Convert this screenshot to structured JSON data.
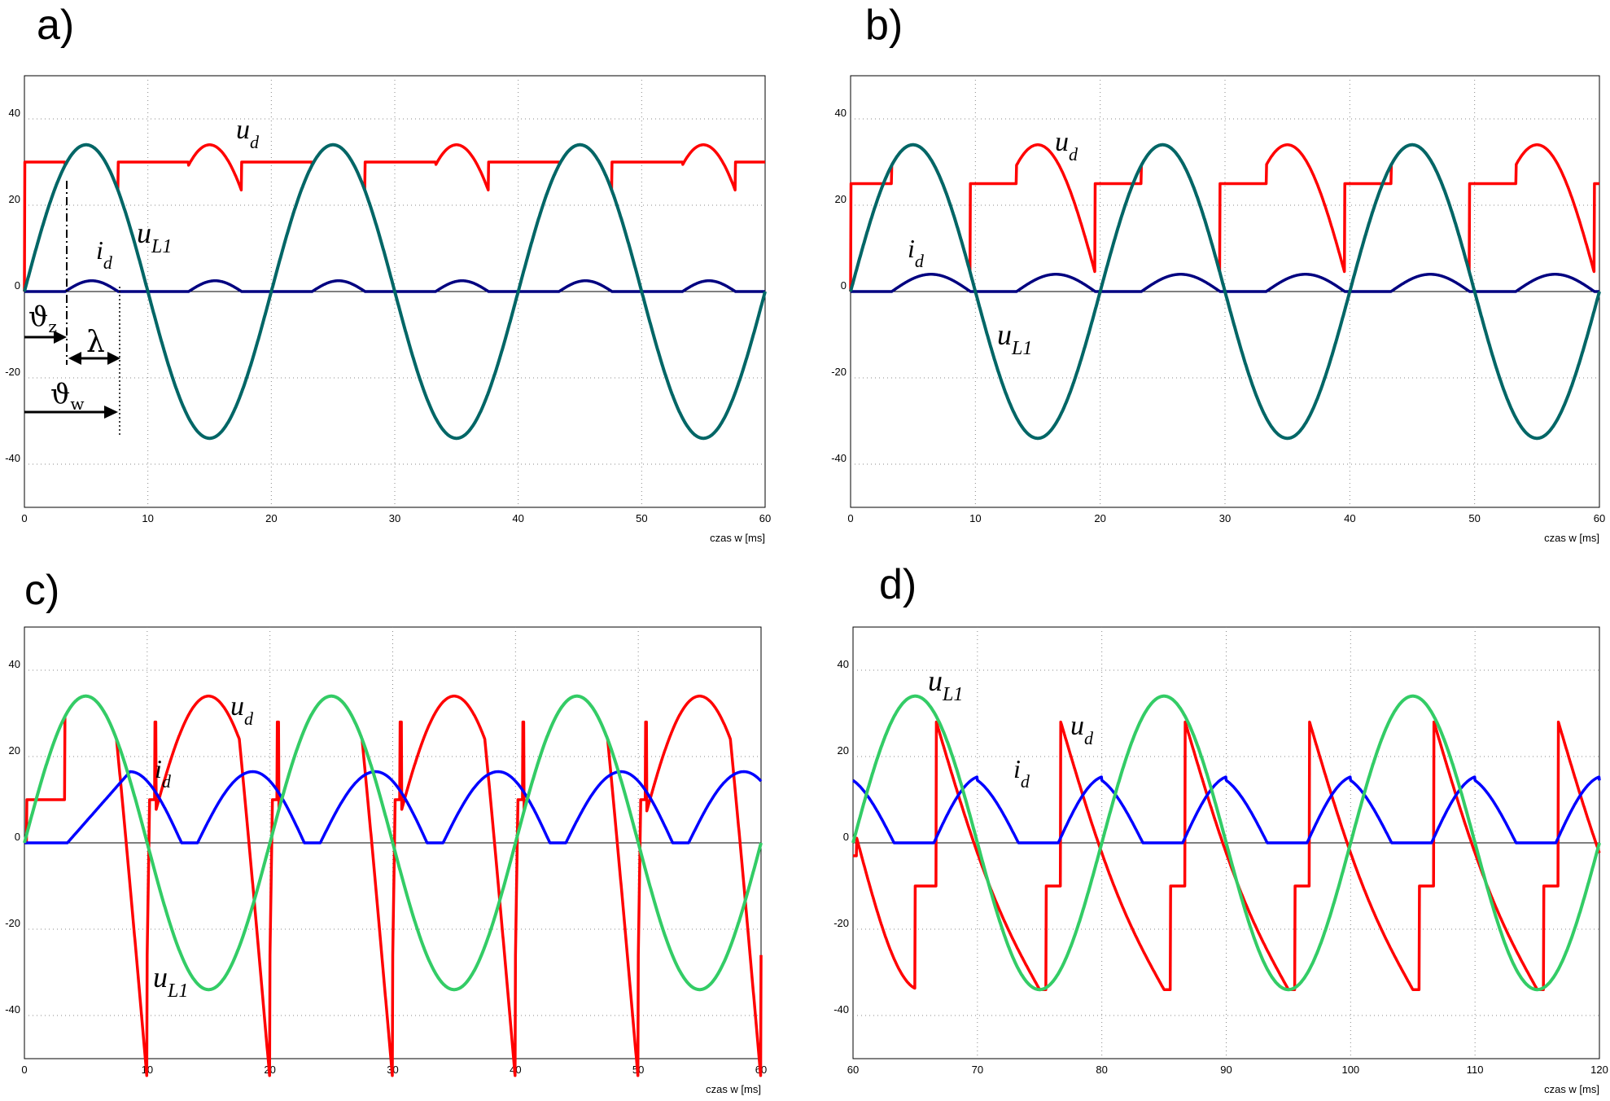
{
  "chart_data": [
    {
      "panel": "a)",
      "type": "line",
      "xlabel": "czas w [ms]",
      "xlim": [
        0,
        60
      ],
      "xticks": [
        0,
        10,
        20,
        30,
        40,
        50,
        60
      ],
      "ylim": [
        -50,
        50
      ],
      "yticks": [
        -40,
        -20,
        0,
        20,
        40
      ],
      "grid": true,
      "series": [
        {
          "name": "u_d",
          "color": "#ff0000",
          "kind": "ud",
          "Ud": 30,
          "t_on": 3.3,
          "t_off": 7.6,
          "period": 10
        },
        {
          "name": "u_L1",
          "color": "#006666",
          "kind": "sine",
          "amp": 34,
          "period": 20,
          "t0": 0
        },
        {
          "name": "i_d",
          "color": "#000080",
          "kind": "id_pulse",
          "amp": 2.5,
          "t_on": 3.3,
          "t_off": 7.6,
          "period": 10
        }
      ],
      "annotations": [
        {
          "text": "u",
          "sub": "d"
        },
        {
          "text": "u",
          "sub": "L1"
        },
        {
          "text": "i",
          "sub": "d"
        },
        {
          "text": "ϑ",
          "sub": "z"
        },
        {
          "text": "λ"
        },
        {
          "text": "ϑ",
          "sub": "w"
        }
      ]
    },
    {
      "panel": "b)",
      "type": "line",
      "xlabel": "czas w [ms]",
      "xlim": [
        0,
        60
      ],
      "xticks": [
        0,
        10,
        20,
        30,
        40,
        50,
        60
      ],
      "ylim": [
        -50,
        50
      ],
      "yticks": [
        -40,
        -20,
        0,
        20,
        40
      ],
      "grid": true,
      "series": [
        {
          "name": "u_d",
          "color": "#ff0000",
          "kind": "ud",
          "Ud": 25,
          "t_on": 3.3,
          "t_off": 9.6,
          "period": 10
        },
        {
          "name": "u_L1",
          "color": "#006666",
          "kind": "sine",
          "amp": 34,
          "period": 20,
          "t0": 0
        },
        {
          "name": "i_d",
          "color": "#000080",
          "kind": "id_pulse",
          "amp": 4,
          "t_on": 3.3,
          "t_off": 9.6,
          "period": 10
        }
      ],
      "annotations": [
        {
          "text": "u",
          "sub": "d"
        },
        {
          "text": "i",
          "sub": "d"
        },
        {
          "text": "u",
          "sub": "L1"
        }
      ]
    },
    {
      "panel": "c)",
      "type": "line",
      "xlabel": "czas w [ms]",
      "xlim": [
        0,
        60
      ],
      "xticks": [
        0,
        10,
        20,
        30,
        40,
        50,
        60
      ],
      "ylim": [
        -50,
        50
      ],
      "yticks": [
        -40,
        -20,
        0,
        20,
        40
      ],
      "grid": true,
      "series": [
        {
          "name": "u_d",
          "color": "#ff0000",
          "kind": "ud_c",
          "Ud": 10,
          "amp": 32,
          "period": 10
        },
        {
          "name": "u_L1",
          "color": "#33cc66",
          "kind": "sine",
          "amp": 34,
          "period": 20,
          "t0": 0
        },
        {
          "name": "i_d",
          "color": "#0000ff",
          "kind": "id_c",
          "amp": 16.5,
          "period": 10
        }
      ],
      "annotations": [
        {
          "text": "u",
          "sub": "d"
        },
        {
          "text": "i",
          "sub": "d"
        },
        {
          "text": "u",
          "sub": "L1"
        }
      ]
    },
    {
      "panel": "d)",
      "type": "line",
      "xlabel": "czas w [ms]",
      "xlim": [
        60,
        120
      ],
      "xticks": [
        60,
        70,
        80,
        90,
        100,
        110,
        120
      ],
      "ylim": [
        -50,
        50
      ],
      "yticks": [
        -40,
        -20,
        0,
        20,
        40
      ],
      "grid": true,
      "series": [
        {
          "name": "u_d",
          "color": "#ff0000",
          "kind": "ud_d",
          "amp": 34,
          "period": 10
        },
        {
          "name": "u_L1",
          "color": "#33cc66",
          "kind": "sine",
          "amp": 34,
          "period": 20,
          "t0": 60
        },
        {
          "name": "i_d",
          "color": "#0000ff",
          "kind": "id_d",
          "amp": 15.5,
          "period": 10
        }
      ],
      "annotations": [
        {
          "text": "u",
          "sub": "L1"
        },
        {
          "text": "u",
          "sub": "d"
        },
        {
          "text": "i",
          "sub": "d"
        }
      ]
    }
  ]
}
